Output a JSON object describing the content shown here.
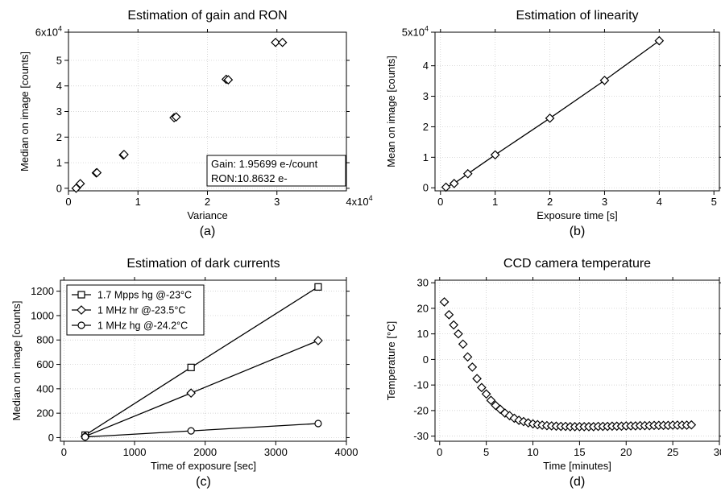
{
  "chart_data": [
    {
      "panel": "a",
      "type": "scatter",
      "title": "Estimation of gain and RON",
      "xlabel": "Variance",
      "ylabel": "Median on image [counts]",
      "caption": "(a)",
      "xlim": [
        0,
        40000
      ],
      "ylim": [
        -1000,
        61000
      ],
      "xticks": [
        {
          "v": 0,
          "label": "0"
        },
        {
          "v": 10000,
          "label": "1"
        },
        {
          "v": 20000,
          "label": "2"
        },
        {
          "v": 30000,
          "label": "3"
        }
      ],
      "x_multiplier": {
        "base": "4x10",
        "exp": "4"
      },
      "yticks": [
        {
          "v": 0,
          "label": "0"
        },
        {
          "v": 10000,
          "label": "1"
        },
        {
          "v": 20000,
          "label": "2"
        },
        {
          "v": 30000,
          "label": "3"
        },
        {
          "v": 40000,
          "label": "4"
        },
        {
          "v": 50000,
          "label": "5"
        }
      ],
      "y_multiplier": {
        "base": "6x10",
        "exp": "4"
      },
      "grid": true,
      "marker": "diamond",
      "series": [
        {
          "x": [
            1100,
            1700,
            4000,
            4100,
            7900,
            8000,
            15200,
            15500,
            22700,
            23000,
            29800,
            30800
          ],
          "y": [
            0,
            1800,
            6000,
            6100,
            13000,
            13200,
            27600,
            27900,
            42600,
            42400,
            57000,
            57000
          ]
        }
      ],
      "annotation": [
        "Gain: 1.95699 e-/count",
        "RON:10.8632 e-"
      ]
    },
    {
      "panel": "b",
      "type": "line",
      "title": "Estimation of linearity",
      "xlabel": "Exposure time [s]",
      "ylabel": "Mean on image [counts]",
      "caption": "(b)",
      "xlim": [
        -0.1,
        5.1
      ],
      "ylim": [
        -1000,
        51000
      ],
      "xticks": [
        {
          "v": 0,
          "label": "0"
        },
        {
          "v": 1,
          "label": "1"
        },
        {
          "v": 2,
          "label": "2"
        },
        {
          "v": 3,
          "label": "3"
        },
        {
          "v": 4,
          "label": "4"
        },
        {
          "v": 5,
          "label": "5"
        }
      ],
      "yticks": [
        {
          "v": 0,
          "label": "0"
        },
        {
          "v": 10000,
          "label": "1"
        },
        {
          "v": 20000,
          "label": "2"
        },
        {
          "v": 30000,
          "label": "3"
        },
        {
          "v": 40000,
          "label": "4"
        }
      ],
      "y_multiplier": {
        "base": "5x10",
        "exp": "4"
      },
      "grid": true,
      "marker": "diamond",
      "series": [
        {
          "x": [
            0.1,
            0.25,
            0.5,
            1,
            2,
            3,
            4
          ],
          "y": [
            200,
            1400,
            4600,
            10800,
            22800,
            35200,
            48200
          ]
        }
      ]
    },
    {
      "panel": "c",
      "type": "line",
      "title": "Estimation of dark currents",
      "xlabel": "Time of exposure [sec]",
      "ylabel": "Median on image [counts]",
      "caption": "(c)",
      "xlim": [
        -50,
        4000
      ],
      "ylim": [
        -30,
        1290
      ],
      "xticks": [
        {
          "v": 0,
          "label": "0"
        },
        {
          "v": 1000,
          "label": "1000"
        },
        {
          "v": 2000,
          "label": "2000"
        },
        {
          "v": 3000,
          "label": "3000"
        },
        {
          "v": 4000,
          "label": "4000"
        }
      ],
      "yticks": [
        {
          "v": 0,
          "label": "0"
        },
        {
          "v": 200,
          "label": "200"
        },
        {
          "v": 400,
          "label": "400"
        },
        {
          "v": 600,
          "label": "600"
        },
        {
          "v": 800,
          "label": "800"
        },
        {
          "v": 1000,
          "label": "1000"
        },
        {
          "v": 1200,
          "label": "1200"
        }
      ],
      "grid": true,
      "legend_position": "top-left",
      "series": [
        {
          "name": "1.7 Mpps hg @-23°C",
          "marker": "square",
          "x": [
            300,
            1800,
            3600
          ],
          "y": [
            20,
            575,
            1235
          ]
        },
        {
          "name": "1 MHz hr @-23.5°C",
          "marker": "diamond",
          "x": [
            300,
            1800,
            3600
          ],
          "y": [
            10,
            365,
            795
          ]
        },
        {
          "name": "1 MHz hg @-24.2°C",
          "marker": "circle",
          "x": [
            300,
            1800,
            3600
          ],
          "y": [
            5,
            55,
            115
          ]
        }
      ]
    },
    {
      "panel": "d",
      "type": "scatter",
      "title": "CCD camera temperature",
      "xlabel": "Time [minutes]",
      "ylabel": "Temperature [°C]",
      "caption": "(d)",
      "xlim": [
        -0.5,
        30
      ],
      "ylim": [
        -32,
        31
      ],
      "xticks": [
        {
          "v": 0,
          "label": "0"
        },
        {
          "v": 5,
          "label": "5"
        },
        {
          "v": 10,
          "label": "10"
        },
        {
          "v": 15,
          "label": "15"
        },
        {
          "v": 20,
          "label": "20"
        },
        {
          "v": 25,
          "label": "25"
        },
        {
          "v": 30,
          "label": "30"
        }
      ],
      "yticks": [
        {
          "v": -30,
          "label": "-30"
        },
        {
          "v": -20,
          "label": "-20"
        },
        {
          "v": -10,
          "label": "-10"
        },
        {
          "v": 0,
          "label": "0"
        },
        {
          "v": 10,
          "label": "10"
        },
        {
          "v": 20,
          "label": "20"
        },
        {
          "v": 30,
          "label": "30"
        }
      ],
      "grid": true,
      "marker": "diamond",
      "series": [
        {
          "x": [
            0.5,
            1,
            1.5,
            2,
            2.5,
            3,
            3.5,
            4,
            4.5,
            5,
            5.5,
            6,
            6.5,
            7,
            7.5,
            8,
            8.5,
            9,
            9.5,
            10,
            10.5,
            11,
            11.5,
            12,
            12.5,
            13,
            13.5,
            14,
            14.5,
            15,
            15.5,
            16,
            16.5,
            17,
            17.5,
            18,
            18.5,
            19,
            19.5,
            20,
            20.5,
            21,
            21.5,
            22,
            22.5,
            23,
            23.5,
            24,
            24.5,
            25,
            25.5,
            26,
            26.5,
            27
          ],
          "y": [
            22.5,
            17.5,
            13.5,
            10,
            6,
            1,
            -3,
            -7.5,
            -11,
            -13.5,
            -16,
            -18,
            -19.5,
            -21,
            -22,
            -23,
            -23.8,
            -24.3,
            -24.8,
            -25.2,
            -25.5,
            -25.7,
            -25.9,
            -26,
            -26.1,
            -26.2,
            -26.2,
            -26.3,
            -26.3,
            -26.3,
            -26.3,
            -26.3,
            -26.3,
            -26.2,
            -26.2,
            -26.2,
            -26.1,
            -26.1,
            -26.1,
            -26,
            -26,
            -26,
            -25.9,
            -25.9,
            -25.9,
            -25.8,
            -25.8,
            -25.8,
            -25.8,
            -25.7,
            -25.7,
            -25.7,
            -25.7,
            -25.6
          ]
        }
      ]
    }
  ]
}
